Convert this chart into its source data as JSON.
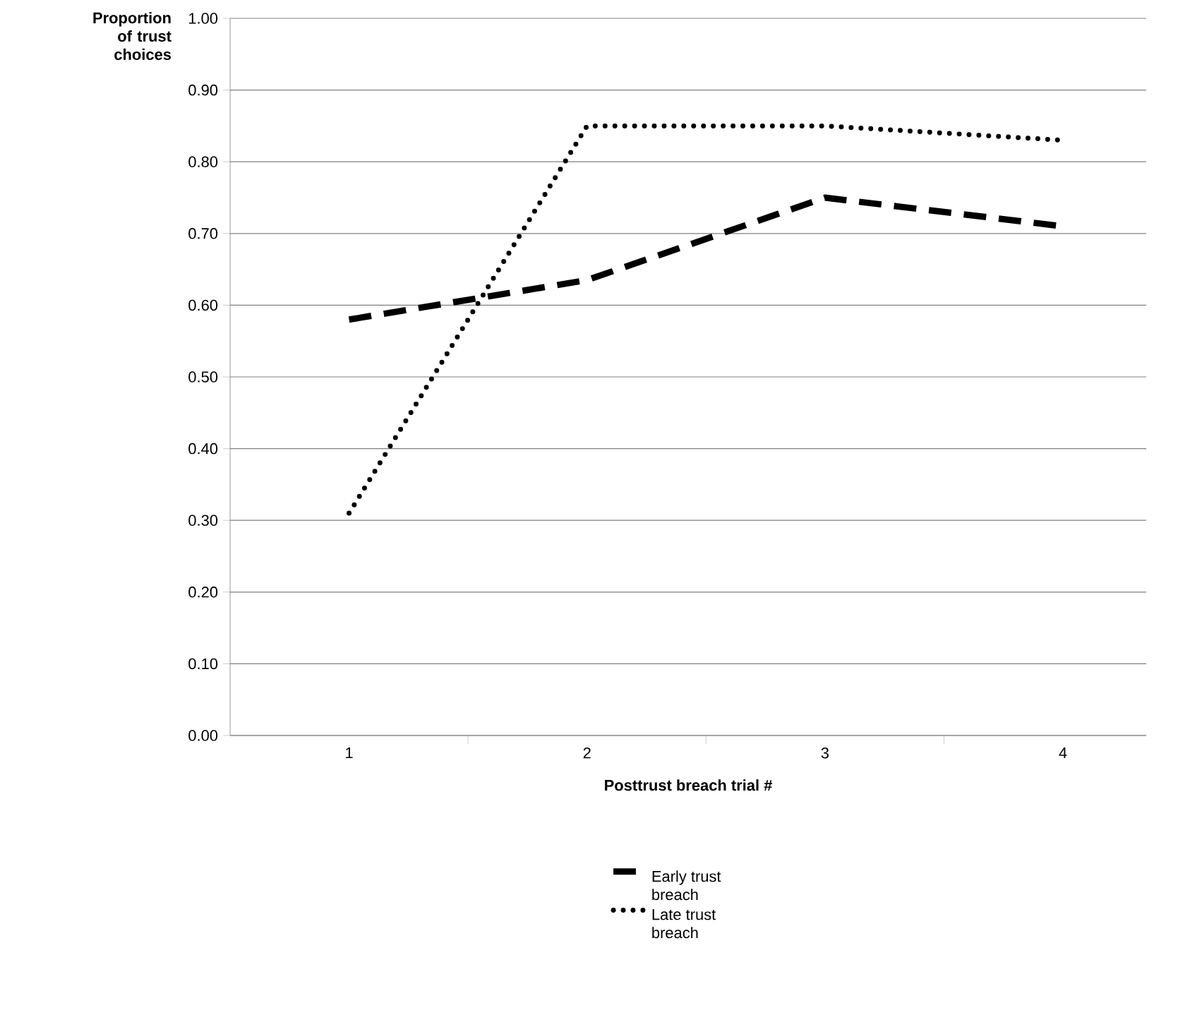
{
  "chart_data": {
    "type": "line",
    "xlabel": "Posttrust breach trial #",
    "ylabel": "Proportion of trust choices",
    "categories": [
      "1",
      "2",
      "3",
      "4"
    ],
    "series": [
      {
        "name": "Early trust breach",
        "color": "#000000",
        "line_style": "dashed",
        "values": [
          0.58,
          0.635,
          0.75,
          0.71
        ]
      },
      {
        "name": "Late trust breach",
        "color": "#000000",
        "line_style": "dotted",
        "values": [
          0.31,
          0.85,
          0.85,
          0.83
        ]
      }
    ],
    "ylim": [
      0,
      1
    ],
    "yticks": [
      {
        "value": 0,
        "label": "0.00"
      },
      {
        "value": 0.1,
        "label": "0.10"
      },
      {
        "value": 0.2,
        "label": "0.20"
      },
      {
        "value": 0.3,
        "label": "0.30"
      },
      {
        "value": 0.4,
        "label": "0.40"
      },
      {
        "value": 0.5,
        "label": "0.50"
      },
      {
        "value": 0.6,
        "label": "0.60"
      },
      {
        "value": 0.7,
        "label": "0.70"
      },
      {
        "value": 0.8,
        "label": "0.80"
      },
      {
        "value": 0.9,
        "label": "0.90"
      },
      {
        "value": 1,
        "label": "1.00"
      }
    ],
    "grid": "y",
    "legend": "bottom",
    "marker": "none"
  }
}
